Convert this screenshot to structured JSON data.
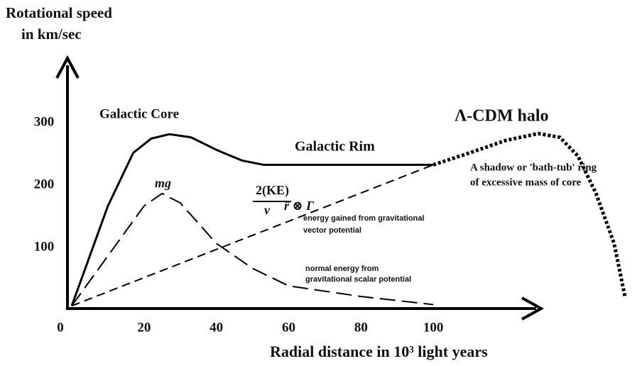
{
  "chart_data": {
    "type": "line",
    "y_label": [
      "Rotational speed",
      "in km/sec"
    ],
    "x_label": "Radial distance in 10³ light years",
    "xlim": [
      0,
      153
    ],
    "ylim": [
      0,
      400
    ],
    "xticks": [
      0,
      20,
      40,
      60,
      80,
      100
    ],
    "yticks": [
      100,
      200,
      300
    ],
    "series": [
      {
        "color": "#000000",
        "dash": "solid",
        "x": [
          0,
          10,
          17,
          22,
          27,
          33,
          40,
          47,
          53,
          60,
          80,
          100
        ],
        "values": [
          10,
          170,
          255,
          278,
          285,
          280,
          260,
          243,
          236,
          236,
          236,
          236
        ]
      },
      {
        "color": "#000000",
        "dash": "long",
        "x": [
          0,
          10,
          20,
          25,
          30,
          40,
          50,
          60,
          80,
          100
        ],
        "values": [
          10,
          90,
          170,
          190,
          175,
          110,
          70,
          42,
          25,
          12
        ]
      },
      {
        "color": "#000000",
        "dash": "short",
        "x": [
          0,
          100
        ],
        "values": [
          10,
          236
        ]
      },
      {
        "color": "#000000",
        "dash": "dotted",
        "x": [
          100,
          110,
          120,
          129,
          135,
          140,
          145,
          150,
          153
        ],
        "values": [
          236,
          255,
          275,
          286,
          280,
          250,
          190,
          110,
          25
        ]
      }
    ],
    "annotations": [
      "Galactic Core",
      "Galactic Rim",
      "Λ-CDM halo",
      "A shadow or 'bath-tub' ring",
      "of excessive mass of core",
      "mg⃗",
      "2(KE)",
      "v",
      "r̂ ⊗ Γ⃗",
      "energy gained from gravitational",
      "vector potential",
      "normal energy from",
      "gravitational scalar potential"
    ]
  }
}
